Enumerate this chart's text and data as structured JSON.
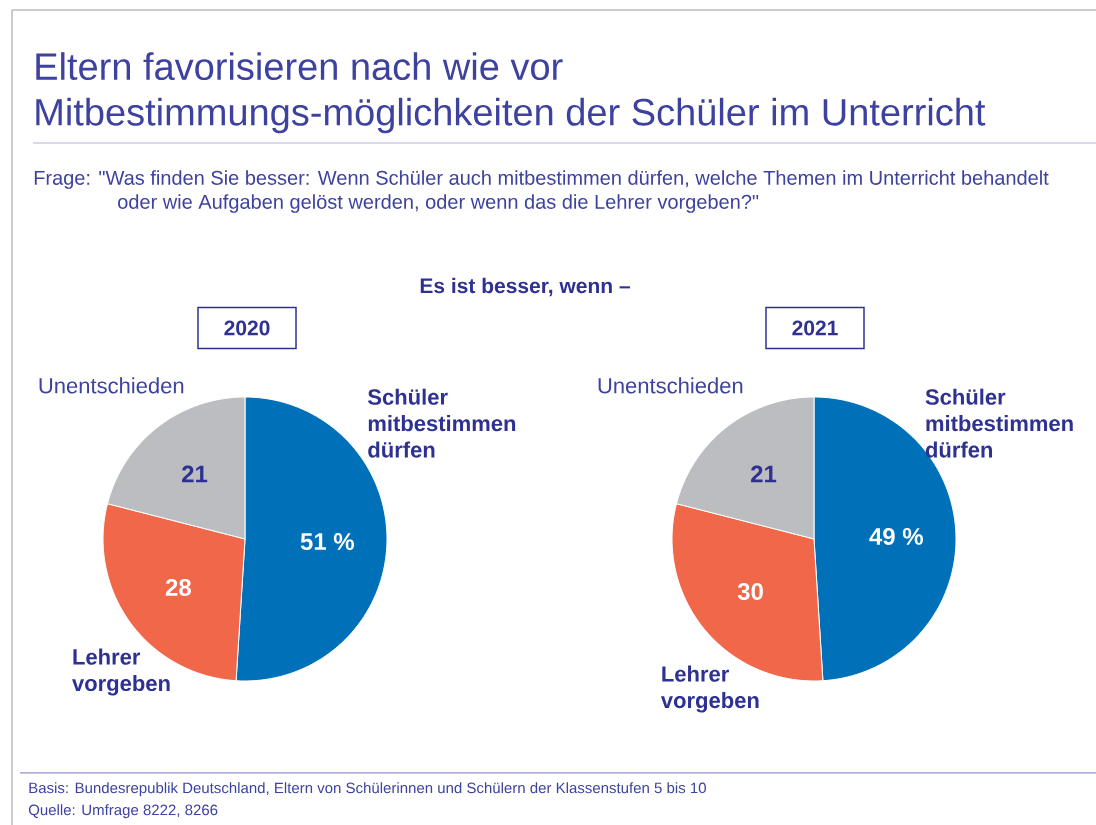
{
  "chart_data": [
    {
      "type": "pie",
      "title": "2020",
      "categories": [
        "Schüler mitbestimmen dürfen",
        "Lehrer vorgeben",
        "Unentschieden"
      ],
      "values": [
        51,
        28,
        21
      ],
      "colors": [
        "#0070b8",
        "#f0674a",
        "#bcbdc1"
      ],
      "value_labels": [
        "51 %",
        "28",
        "21"
      ],
      "annotations": [
        "Eltern favorisieren nach wie vor Mitbestimmungs-möglichkeiten der Schüler im Unterricht",
        "Frage: \"Was finden Sie besser: Wenn Schüler auch mitbestimmen dürfen, welche Themen im Unterricht behandelt oder wie Aufgaben gelöst werden, oder wenn das die Lehrer vorgeben?\"",
        "Es ist besser, wenn –"
      ]
    },
    {
      "type": "pie",
      "title": "2021",
      "categories": [
        "Schüler mitbestimmen dürfen",
        "Lehrer vorgeben",
        "Unentschieden"
      ],
      "values": [
        49,
        30,
        21
      ],
      "colors": [
        "#0070b8",
        "#f0674a",
        "#bcbdc1"
      ],
      "value_labels": [
        "49 %",
        "30",
        "21"
      ],
      "annotations": [
        "Basis: Bundesrepublik Deutschland, Eltern von Schülerinnen und Schülern der Klassenstufen 5 bis 10",
        "Quelle: Umfrage 8222, 8266"
      ]
    }
  ]
}
